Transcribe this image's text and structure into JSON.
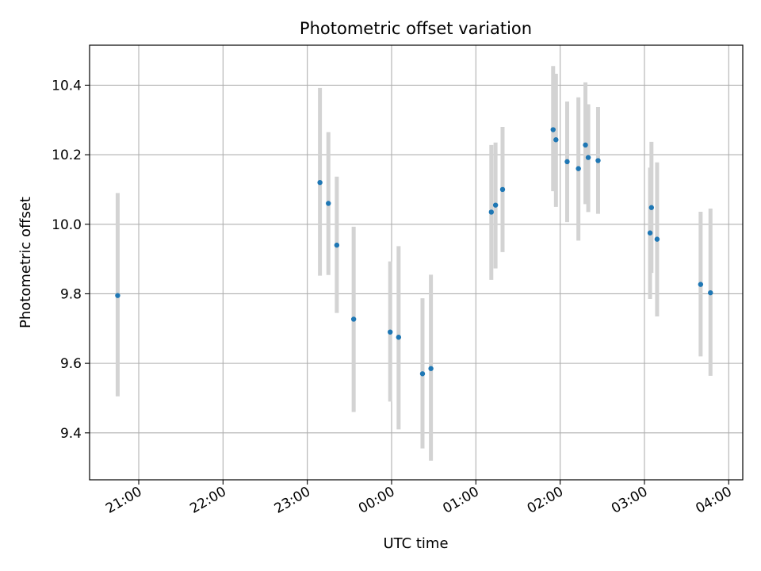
{
  "chart_data": {
    "type": "scatter",
    "title": "Photometric offset variation",
    "xlabel": "UTC time",
    "ylabel": "Photometric offset",
    "x_ticks": [
      "21:00",
      "22:00",
      "23:00",
      "00:00",
      "01:00",
      "02:00",
      "03:00",
      "04:00"
    ],
    "y_ticks": [
      "9.4",
      "9.6",
      "9.8",
      "10.0",
      "10.2",
      "10.4"
    ],
    "xlim": [
      "20:25",
      "04:10"
    ],
    "ylim": [
      9.265,
      10.515
    ],
    "grid": true,
    "points": [
      {
        "t": "20:45",
        "y": 9.795,
        "lo": 9.505,
        "hi": 10.09
      },
      {
        "t": "23:09",
        "y": 10.12,
        "lo": 9.852,
        "hi": 10.392
      },
      {
        "t": "23:15",
        "y": 10.06,
        "lo": 9.854,
        "hi": 10.265
      },
      {
        "t": "23:21",
        "y": 9.94,
        "lo": 9.745,
        "hi": 10.137
      },
      {
        "t": "23:33",
        "y": 9.727,
        "lo": 9.46,
        "hi": 9.993
      },
      {
        "t": "23:59",
        "y": 9.69,
        "lo": 9.49,
        "hi": 9.893
      },
      {
        "t": "00:05",
        "y": 9.675,
        "lo": 9.41,
        "hi": 9.937
      },
      {
        "t": "00:22",
        "y": 9.57,
        "lo": 9.355,
        "hi": 9.787
      },
      {
        "t": "00:28",
        "y": 9.585,
        "lo": 9.32,
        "hi": 9.855
      },
      {
        "t": "01:11",
        "y": 10.035,
        "lo": 9.84,
        "hi": 10.228
      },
      {
        "t": "01:14",
        "y": 10.055,
        "lo": 9.873,
        "hi": 10.235
      },
      {
        "t": "01:19",
        "y": 10.1,
        "lo": 9.92,
        "hi": 10.28
      },
      {
        "t": "01:55",
        "y": 10.272,
        "lo": 10.095,
        "hi": 10.455
      },
      {
        "t": "01:57",
        "y": 10.243,
        "lo": 10.05,
        "hi": 10.433
      },
      {
        "t": "02:05",
        "y": 10.18,
        "lo": 10.006,
        "hi": 10.353
      },
      {
        "t": "02:13",
        "y": 10.16,
        "lo": 9.953,
        "hi": 10.365
      },
      {
        "t": "02:18",
        "y": 10.228,
        "lo": 10.058,
        "hi": 10.408
      },
      {
        "t": "02:20",
        "y": 10.192,
        "lo": 10.035,
        "hi": 10.345
      },
      {
        "t": "02:27",
        "y": 10.183,
        "lo": 10.03,
        "hi": 10.337
      },
      {
        "t": "03:04",
        "y": 9.975,
        "lo": 9.785,
        "hi": 10.163
      },
      {
        "t": "03:05",
        "y": 10.048,
        "lo": 9.86,
        "hi": 10.237
      },
      {
        "t": "03:09",
        "y": 9.957,
        "lo": 9.735,
        "hi": 10.178
      },
      {
        "t": "03:40",
        "y": 9.827,
        "lo": 9.62,
        "hi": 10.036
      },
      {
        "t": "03:47",
        "y": 9.803,
        "lo": 9.564,
        "hi": 10.045
      }
    ],
    "marker_color": "#1f77b4",
    "errorbar_color": "#d3d3d3",
    "grid_color": "#b0b0b0"
  }
}
